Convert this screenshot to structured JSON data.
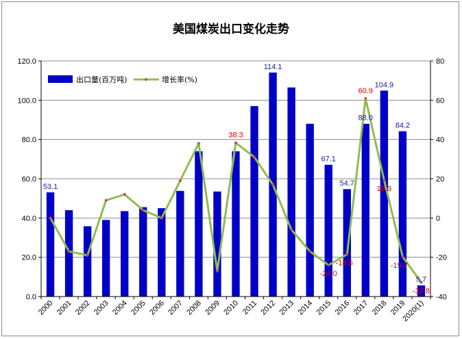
{
  "chart_data": {
    "type": "bar",
    "title": "美国煤炭出口变化走势",
    "categories": [
      "2000",
      "2001",
      "2002",
      "2003",
      "2004",
      "2005",
      "2006",
      "2007",
      "2008",
      "2009",
      "2010",
      "2011",
      "2012",
      "2013",
      "2014",
      "2015",
      "2016",
      "2017",
      "2018",
      "2019",
      "2020(1)"
    ],
    "series": [
      {
        "name": "出口量(百万吨)",
        "type": "bar",
        "axis": "left",
        "color": "#0000c8",
        "values": [
          53.1,
          44.0,
          35.8,
          39.0,
          43.5,
          45.5,
          45.0,
          53.8,
          74.0,
          53.5,
          74.0,
          97.0,
          114.1,
          106.5,
          88.0,
          67.1,
          54.7,
          88.0,
          104.9,
          84.2,
          5.7
        ],
        "data_labels": {
          "0": "53.1",
          "12": "114.1",
          "15": "67.1",
          "16": "54.7",
          "17": "88.0",
          "18": "104.9",
          "19": "84.2",
          "20": "5.7"
        }
      },
      {
        "name": "增长率(%)",
        "type": "line",
        "axis": "right",
        "color": "#8fbc4e",
        "marker_color": "#c0504d",
        "values": [
          0,
          -17,
          -19,
          9,
          12,
          4,
          0,
          19,
          38,
          -27,
          38.3,
          31,
          17,
          -6,
          -17,
          -24.0,
          -18.5,
          60.9,
          19.3,
          -19.7,
          -32.8
        ],
        "data_labels": {
          "10": "38.3",
          "15": "-24.0",
          "16": "-18.5",
          "17": "60.9",
          "18": "19.3",
          "19": "-19.7",
          "20": "-32.8"
        }
      }
    ],
    "y_left": {
      "min": 0,
      "max": 120,
      "step": 20,
      "tick_labels": [
        "0.0",
        "20.0",
        "40.0",
        "60.0",
        "80.0",
        "100.0",
        "120.0"
      ]
    },
    "y_right": {
      "min": -40,
      "max": 80,
      "step": 20,
      "tick_labels": [
        "-40",
        "-20",
        "0",
        "20",
        "40",
        "60",
        "80"
      ]
    },
    "legend_position": "top-left",
    "grid": true
  }
}
